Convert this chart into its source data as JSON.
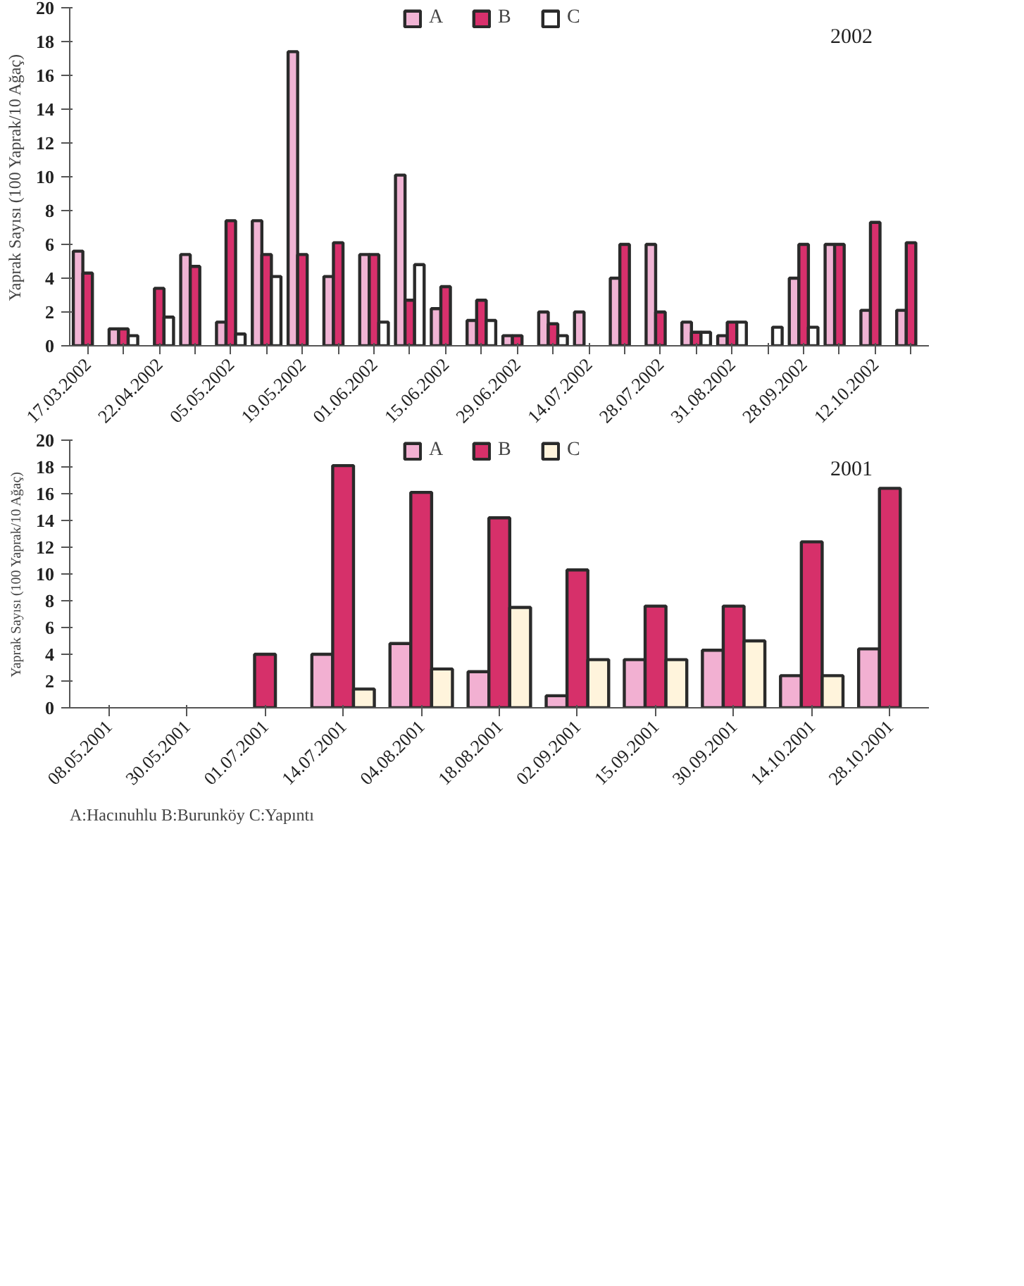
{
  "chart_data": [
    {
      "type": "bar",
      "ylabel": "Yaprak Sayısı (100 Yaprak/10 Ağaç)",
      "annotations": [
        "2002"
      ],
      "legend": "top",
      "grid": false,
      "categories": [
        "17.03.2002",
        null,
        "22.04.2002",
        null,
        "05.05.2002",
        null,
        "19.05.2002",
        null,
        "01.06.2002",
        null,
        "15.06.2002",
        null,
        "29.06.2002",
        null,
        "14.07.2002",
        null,
        "28.07.2002",
        null,
        "31.08.2002",
        null,
        "28.09.2002",
        null,
        "12.10.2002",
        null
      ],
      "ylim": [
        0,
        20
      ],
      "yticks": [
        0,
        2,
        4,
        6,
        8,
        10,
        12,
        14,
        16,
        18,
        20
      ],
      "series": [
        {
          "name": "A",
          "color": "#f0b4d4",
          "values": [
            5.6,
            1.0,
            null,
            5.4,
            1.4,
            7.4,
            17.4,
            4.1,
            5.4,
            10.1,
            2.2,
            1.5,
            0.6,
            2.0,
            2.0,
            4.0,
            6.0,
            1.4,
            0.6,
            null,
            4.0,
            6.0,
            2.1,
            2.1
          ]
        },
        {
          "name": "B",
          "color": "#d8306c",
          "values": [
            4.3,
            1.0,
            3.4,
            4.7,
            7.4,
            5.4,
            5.4,
            6.1,
            5.4,
            2.7,
            3.5,
            2.7,
            0.6,
            1.3,
            null,
            6.0,
            2.0,
            0.8,
            1.4,
            null,
            6.0,
            6.0,
            7.3,
            6.1
          ]
        },
        {
          "name": "C",
          "color": "#ffffff",
          "values": [
            null,
            0.6,
            1.7,
            null,
            0.7,
            4.1,
            null,
            null,
            1.4,
            4.8,
            null,
            1.5,
            null,
            0.6,
            null,
            null,
            null,
            0.8,
            1.4,
            1.1,
            1.1,
            null,
            null,
            null
          ]
        }
      ]
    },
    {
      "type": "bar",
      "ylabel": "Yaprak Sayısı (100 Yaprak/10 Ağaç)",
      "annotations": [
        "2001",
        "A:Hacınuhlu B:Burunköy C:Yapıntı"
      ],
      "legend": "top",
      "grid": false,
      "categories": [
        "08.05.2001",
        "30.05.2001",
        "01.07.2001",
        "14.07.2001",
        "04.08.2001",
        "18.08.2001",
        "02.09.2001",
        "15.09.2001",
        "30.09.2001",
        "14.10.2001",
        "28.10.2001"
      ],
      "ylim": [
        0,
        20
      ],
      "yticks": [
        0,
        2,
        4,
        6,
        8,
        10,
        12,
        14,
        16,
        18,
        20
      ],
      "series": [
        {
          "name": "A",
          "color": "#f2b0d2",
          "values": [
            null,
            null,
            null,
            4.0,
            4.8,
            2.7,
            0.9,
            3.6,
            4.3,
            2.4,
            4.4
          ]
        },
        {
          "name": "B",
          "color": "#d6306a",
          "values": [
            null,
            null,
            4.0,
            18.1,
            16.1,
            14.2,
            10.3,
            7.6,
            7.6,
            12.4,
            16.4
          ]
        },
        {
          "name": "C",
          "color": "#fff4dc",
          "values": [
            null,
            null,
            null,
            1.4,
            2.9,
            7.5,
            3.6,
            3.6,
            5.0,
            2.4,
            null
          ]
        }
      ]
    }
  ]
}
